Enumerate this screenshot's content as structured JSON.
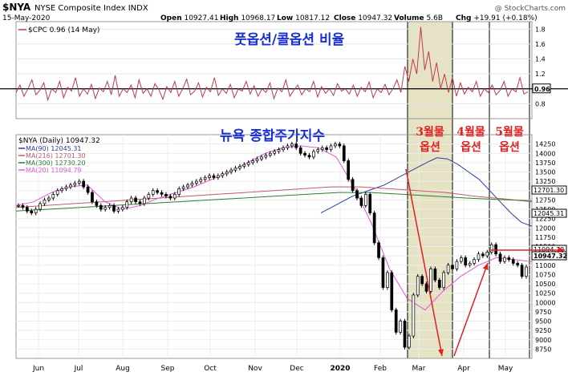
{
  "header": {
    "symbol": "$NYA",
    "name": "NYSE Composite Index INDX",
    "date": "15-May-2020",
    "open_label": "Open",
    "open": "10927.41",
    "high_label": "High",
    "high": "10968.17",
    "low_label": "Low",
    "low": "10817.12",
    "close_label": "Close",
    "close": "10947.32",
    "volume_label": "Volume",
    "volume": "5.6B",
    "chg_label": "Chg",
    "chg": "+19.91 (+0.18%)",
    "watermark": "@ StockCharts.com"
  },
  "annotations": {
    "top_title": "풋옵션/콜옵션 비율",
    "main_title": "뉴욕 종합주가지수",
    "mar": [
      "3월물",
      "옵션"
    ],
    "apr": [
      "4월물",
      "옵션"
    ],
    "may": [
      "5월물",
      "옵션"
    ]
  },
  "colors": {
    "cpc": "#c0394e",
    "price": "#000000",
    "ma90": "#2b3f9e",
    "ma216": "#c05a6a",
    "ma300": "#2e7d32",
    "ma20": "#e05ad8",
    "shade": "#e6e2c4",
    "annotation_red": "#e02020",
    "annotation_blue": "#1a2fd6"
  },
  "chart_data": [
    {
      "type": "line",
      "legend": "$CPC 0.96 (14 May)",
      "last_value": "0.96",
      "ylim": [
        0.6,
        1.9
      ],
      "yticks": [
        "1.8",
        "1.6",
        "1.4",
        "1.2",
        "1.0",
        "0.8"
      ],
      "reference_line": 1.0,
      "series": [
        {
          "name": "$CPC",
          "values": [
            0.95,
            1.05,
            0.9,
            1.0,
            1.12,
            0.92,
            0.98,
            1.08,
            0.85,
            1.0,
            0.95,
            1.1,
            0.88,
            1.02,
            0.97,
            1.15,
            0.9,
            1.0,
            0.93,
            1.06,
            0.87,
            1.01,
            0.96,
            1.1,
            0.92,
            1.18,
            0.9,
            1.0,
            0.95,
            1.05,
            0.88,
            1.12,
            0.94,
            1.0,
            0.9,
            1.07,
            0.99,
            0.86,
            1.03,
            0.95,
            1.1,
            0.9,
            1.0,
            1.13,
            0.92,
            0.97,
            1.08,
            0.89,
            1.02,
            0.96,
            1.15,
            0.91,
            1.0,
            0.94,
            1.06,
            0.88,
            1.0,
            0.97,
            1.1,
            0.93,
            1.04,
            0.9,
            1.0,
            0.95,
            1.08,
            0.87,
            1.01,
            0.96,
            1.12,
            0.9,
            0.98,
            1.05,
            0.92,
            1.0,
            0.96,
            1.1,
            0.89,
            1.03,
            0.94,
            1.0,
            0.91,
            1.07,
            0.97,
            1.0,
            0.93,
            1.05,
            0.9,
            1.02,
            0.96,
            1.09,
            0.88,
            1.0,
            0.95,
            1.06,
            0.92,
            1.0,
            1.12,
            0.95,
            1.3,
            1.1,
            1.4,
            1.2,
            1.83,
            1.25,
            1.5,
            1.1,
            1.35,
            1.0,
            1.2,
            0.95,
            1.15,
            0.9,
            1.08,
            0.93,
            1.02,
            0.96,
            1.1,
            0.9,
            1.0,
            0.95,
            1.05,
            0.92,
            0.98,
            1.1,
            0.9,
            1.0,
            0.96,
            1.15,
            0.93,
            0.96
          ]
        }
      ]
    },
    {
      "type": "line",
      "legend_title": "$NYA (Daily) 10947.32",
      "legend": [
        {
          "name": "MA(90) 12045.31"
        },
        {
          "name": "MA(216) 12701.30"
        },
        {
          "name": "MA(300) 12730.20"
        },
        {
          "name": "MA(20) 11094.79"
        }
      ],
      "ylim": [
        8500,
        14500
      ],
      "yticks": [
        "14250",
        "14000",
        "13750",
        "13500",
        "13250",
        "13000",
        "12750",
        "12500",
        "12250",
        "12000",
        "11750",
        "11500",
        "11250",
        "11000",
        "10750",
        "10500",
        "10250",
        "10000",
        "9750",
        "9500",
        "9250",
        "9000",
        "8750"
      ],
      "x_labels": [
        "Jun",
        "Jul",
        "Aug",
        "Sep",
        "Oct",
        "Nov",
        "Dec",
        "2020",
        "Feb",
        "Mar",
        "Apr",
        "May"
      ],
      "value_tags": [
        "12701.30",
        "12045.31",
        "11094.79",
        "10947.32"
      ],
      "series": [
        {
          "name": "$NYA",
          "values": [
            12600,
            12550,
            12450,
            12400,
            12500,
            12650,
            12750,
            12800,
            12900,
            13000,
            13050,
            13100,
            13150,
            13200,
            13250,
            13100,
            12950,
            12700,
            12600,
            12500,
            12550,
            12600,
            12450,
            12500,
            12550,
            12700,
            12800,
            12700,
            12650,
            12800,
            12900,
            13000,
            12950,
            12900,
            12850,
            12800,
            12900,
            13050,
            13100,
            13150,
            13200,
            13250,
            13300,
            13350,
            13400,
            13350,
            13400,
            13450,
            13500,
            13550,
            13600,
            13650,
            13700,
            13750,
            13800,
            13850,
            13900,
            13950,
            14000,
            14050,
            14100,
            14150,
            14200,
            14250,
            14150,
            14000,
            13950,
            13900,
            14050,
            14100,
            14150,
            14100,
            14200,
            14250,
            14200,
            13800,
            13300,
            13000,
            12800,
            12600,
            12900,
            12400,
            11600,
            11200,
            10400,
            10800,
            9800,
            9200,
            9500,
            8800,
            9100,
            10200,
            10700,
            10500,
            10300,
            10900,
            10600,
            10400,
            10800,
            11000,
            10900,
            11100,
            11200,
            11000,
            11050,
            11150,
            11300,
            11250,
            11350,
            11550,
            11300,
            11100,
            11200,
            11150,
            11050,
            11000,
            10700,
            10950
          ]
        },
        {
          "name": "MA(90)",
          "values": [
            12400,
            12550,
            12700,
            12850,
            12950,
            13050,
            13150,
            13300,
            13450,
            13600,
            13750,
            13880,
            13850,
            13700,
            13500,
            13300,
            13000,
            12700,
            12400,
            12150,
            12045
          ]
        },
        {
          "name": "MA(216)",
          "values": [
            12550,
            12600,
            12650,
            12700,
            12750,
            12800,
            12850,
            12900,
            12950,
            13000,
            13050,
            13100,
            13100,
            13050,
            13000,
            12950,
            12850,
            12780,
            12701
          ]
        },
        {
          "name": "MA(300)",
          "values": [
            12450,
            12500,
            12550,
            12600,
            12650,
            12700,
            12750,
            12800,
            12850,
            12900,
            12950,
            12950,
            12900,
            12850,
            12800,
            12760,
            12730
          ]
        },
        {
          "name": "MA(20)",
          "values": [
            12600,
            12700,
            12950,
            13100,
            13150,
            12700,
            12500,
            12600,
            12800,
            12950,
            13100,
            13300,
            13500,
            13750,
            14000,
            14150,
            14200,
            14150,
            13900,
            13100,
            12100,
            10900,
            10100,
            9800,
            10300,
            10700,
            11000,
            11200,
            11150,
            11094
          ]
        }
      ]
    }
  ]
}
